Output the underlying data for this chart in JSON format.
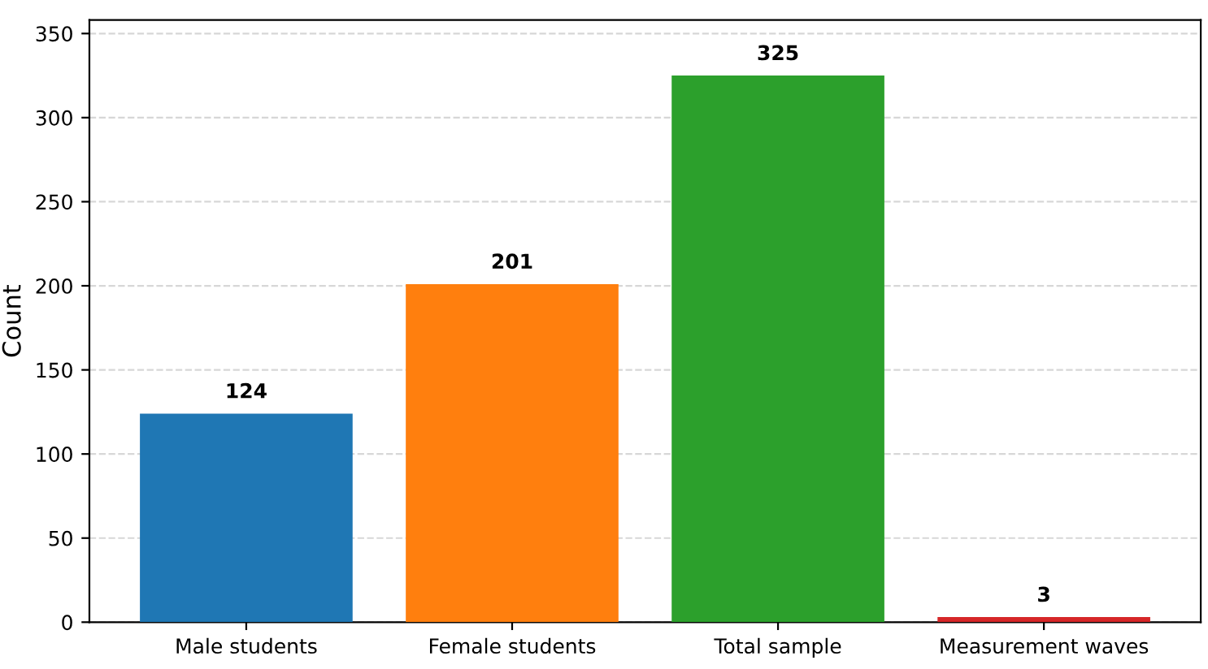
{
  "chart_data": {
    "type": "bar",
    "ylabel": "Count",
    "categories": [
      "Male students",
      "Female students",
      "Total sample",
      "Measurement waves"
    ],
    "values": [
      124,
      201,
      325,
      3
    ],
    "colors": [
      "#1f77b4",
      "#ff7f0e",
      "#2ca02c",
      "#d62728"
    ],
    "ylim": [
      0,
      358
    ],
    "yticks": [
      0,
      50,
      100,
      150,
      200,
      250,
      300,
      350
    ],
    "grid": "y",
    "data_labels": true
  }
}
